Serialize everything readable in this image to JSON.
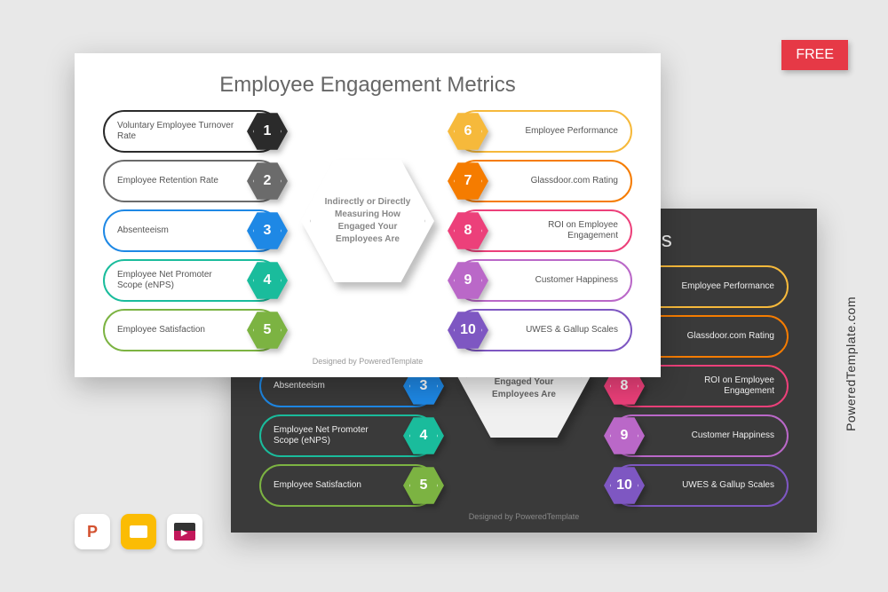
{
  "badge": {
    "label": "FREE",
    "bg": "#e63946"
  },
  "watermark": "PoweredTemplate.com",
  "slide": {
    "title": "Employee Engagement Metrics",
    "center_text": "Indirectly or Directly Measuring How Engaged Your Employees Are",
    "footer": "Designed by PoweredTemplate",
    "left_items": [
      {
        "num": "1",
        "label": "Voluntary Employee Turnover Rate",
        "color": "#2b2b2b"
      },
      {
        "num": "2",
        "label": "Employee Retention Rate",
        "color": "#6b6b6b"
      },
      {
        "num": "3",
        "label": "Absenteeism",
        "color": "#1e88e5"
      },
      {
        "num": "4",
        "label": "Employee Net Promoter Scope (eNPS)",
        "color": "#1abc9c"
      },
      {
        "num": "5",
        "label": "Employee Satisfaction",
        "color": "#7cb342"
      }
    ],
    "right_items": [
      {
        "num": "6",
        "label": "Employee Performance",
        "color": "#f6b93b"
      },
      {
        "num": "7",
        "label": "Glassdoor.com Rating",
        "color": "#f57c00"
      },
      {
        "num": "8",
        "label": "ROI on Employee Engagement",
        "color": "#ec407a"
      },
      {
        "num": "9",
        "label": "Customer Happiness",
        "color": "#ba68c8"
      },
      {
        "num": "10",
        "label": "UWES & Gallup Scales",
        "color": "#7e57c2"
      }
    ]
  },
  "app_icons": [
    {
      "name": "powerpoint-icon",
      "glyph": "P"
    },
    {
      "name": "google-slides-icon"
    },
    {
      "name": "final-cut-icon"
    }
  ]
}
